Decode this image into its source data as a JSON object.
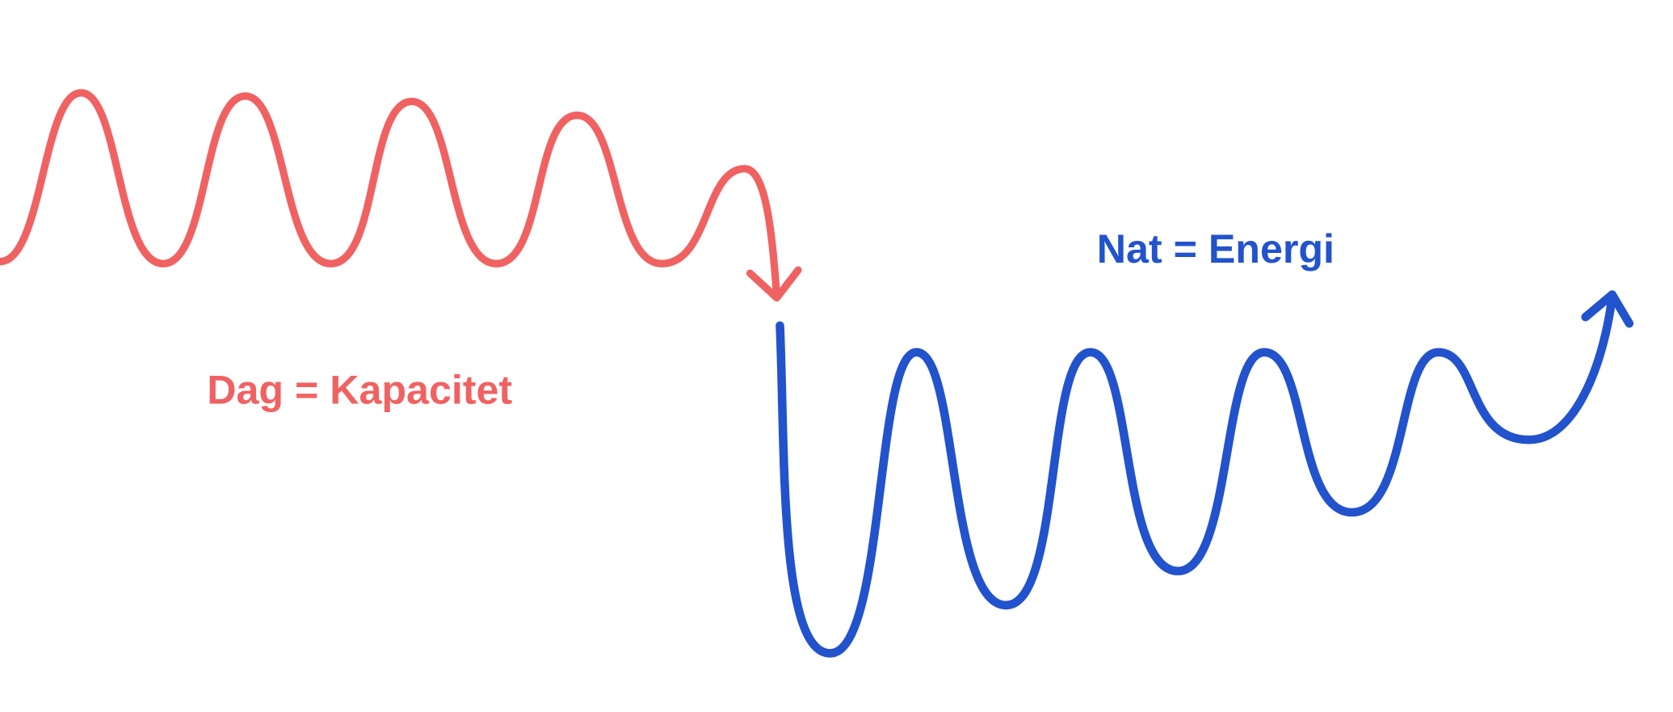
{
  "diagram": {
    "day_label": "Dag = Kapacitet",
    "night_label": "Nat = Energi",
    "colors": {
      "day": "#f06262",
      "night": "#2253cc",
      "background": "#ffffff"
    }
  }
}
